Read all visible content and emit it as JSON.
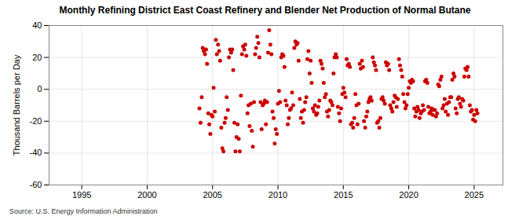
{
  "chart_data": {
    "type": "scatter",
    "title": "Monthly Refining District East Coast Refinery and Blender Net Production of Normal Butane",
    "y_label": "Thousand Barrels per Day",
    "source": "Source: U.S. Energy Information Administration",
    "color": "#cc0000",
    "marker": "circle",
    "grid": true,
    "xlim": [
      1992.5,
      2027.2
    ],
    "xticks": [
      1995,
      2000,
      2005,
      2010,
      2015,
      2020,
      2025
    ],
    "ylim": [
      -60,
      40
    ],
    "yticks": [
      -60,
      -40,
      -20,
      0,
      20,
      40
    ],
    "x": [
      2004.0,
      2004.08,
      2004.17,
      2004.25,
      2004.33,
      2004.42,
      2004.5,
      2004.58,
      2004.67,
      2004.75,
      2004.83,
      2004.92,
      2005.0,
      2005.08,
      2005.17,
      2005.25,
      2005.33,
      2005.42,
      2005.5,
      2005.58,
      2005.67,
      2005.75,
      2005.83,
      2005.92,
      2006.0,
      2006.08,
      2006.17,
      2006.25,
      2006.33,
      2006.42,
      2006.5,
      2006.58,
      2006.67,
      2006.75,
      2006.83,
      2006.92,
      2007.0,
      2007.08,
      2007.17,
      2007.25,
      2007.33,
      2007.42,
      2007.5,
      2007.58,
      2007.67,
      2007.75,
      2007.83,
      2007.92,
      2008.0,
      2008.08,
      2008.17,
      2008.25,
      2008.33,
      2008.42,
      2008.5,
      2008.58,
      2008.67,
      2008.75,
      2008.83,
      2008.92,
      2009.0,
      2009.08,
      2009.17,
      2009.25,
      2009.33,
      2009.42,
      2009.5,
      2009.58,
      2009.67,
      2009.75,
      2009.83,
      2009.92,
      2010.0,
      2010.08,
      2010.17,
      2010.25,
      2010.33,
      2010.42,
      2010.5,
      2010.58,
      2010.67,
      2010.75,
      2010.83,
      2010.92,
      2011.0,
      2011.08,
      2011.17,
      2011.25,
      2011.33,
      2011.42,
      2011.5,
      2011.58,
      2011.67,
      2011.75,
      2011.83,
      2011.92,
      2012.0,
      2012.08,
      2012.17,
      2012.25,
      2012.33,
      2012.42,
      2012.5,
      2012.58,
      2012.67,
      2012.75,
      2012.83,
      2012.92,
      2013.0,
      2013.08,
      2013.17,
      2013.25,
      2013.33,
      2013.42,
      2013.5,
      2013.58,
      2013.67,
      2013.75,
      2013.83,
      2013.92,
      2014.0,
      2014.08,
      2014.17,
      2014.25,
      2014.33,
      2014.42,
      2014.5,
      2014.58,
      2014.67,
      2014.75,
      2014.83,
      2014.92,
      2015.0,
      2015.08,
      2015.17,
      2015.25,
      2015.33,
      2015.42,
      2015.5,
      2015.58,
      2015.67,
      2015.75,
      2015.83,
      2015.92,
      2016.0,
      2016.08,
      2016.17,
      2016.25,
      2016.33,
      2016.42,
      2016.5,
      2016.58,
      2016.67,
      2016.75,
      2016.83,
      2016.92,
      2017.0,
      2017.08,
      2017.17,
      2017.25,
      2017.33,
      2017.42,
      2017.5,
      2017.58,
      2017.67,
      2017.75,
      2017.83,
      2017.92,
      2018.0,
      2018.08,
      2018.17,
      2018.25,
      2018.33,
      2018.42,
      2018.5,
      2018.58,
      2018.67,
      2018.75,
      2018.83,
      2018.92,
      2019.0,
      2019.08,
      2019.17,
      2019.25,
      2019.33,
      2019.42,
      2019.5,
      2019.58,
      2019.67,
      2019.75,
      2019.83,
      2019.92,
      2020.0,
      2020.08,
      2020.17,
      2020.25,
      2020.33,
      2020.42,
      2020.5,
      2020.58,
      2020.67,
      2020.75,
      2020.83,
      2020.92,
      2021.0,
      2021.08,
      2021.17,
      2021.25,
      2021.33,
      2021.42,
      2021.5,
      2021.58,
      2021.67,
      2021.75,
      2021.83,
      2021.92,
      2022.0,
      2022.08,
      2022.17,
      2022.25,
      2022.33,
      2022.42,
      2022.5,
      2022.58,
      2022.67,
      2022.75,
      2022.83,
      2022.92,
      2023.0,
      2023.08,
      2023.17,
      2023.25,
      2023.33,
      2023.42,
      2023.5,
      2023.58,
      2023.67,
      2023.75,
      2023.83,
      2023.92,
      2024.0,
      2024.08,
      2024.17,
      2024.25,
      2024.33,
      2024.42,
      2024.5,
      2024.58,
      2024.67,
      2024.75,
      2024.83,
      2024.92,
      2025.0,
      2025.08,
      2025.17,
      2025.25
    ],
    "values": [
      -12,
      -21,
      -5,
      26,
      24,
      22,
      25,
      16,
      -15,
      -22,
      -28,
      -16,
      -17,
      1,
      -14,
      31,
      22,
      28,
      24,
      18,
      -24,
      -37,
      -39,
      -21,
      -18,
      -5,
      -13,
      20,
      25,
      23,
      25,
      12,
      -21,
      -39,
      -30,
      -22,
      -31,
      -39,
      -4,
      22,
      27,
      25,
      28,
      21,
      -15,
      -10,
      -23,
      -9,
      -26,
      -36,
      -8,
      22,
      26,
      33,
      29,
      20,
      -8,
      -25,
      -10,
      -9,
      -7,
      -22,
      -8,
      23,
      37,
      28,
      22,
      -14,
      -18,
      -34,
      -25,
      -28,
      -9,
      -1,
      -8,
      20,
      22,
      21,
      14,
      -7,
      -10,
      -22,
      -18,
      -13,
      -12,
      -2,
      -10,
      26,
      30,
      28,
      29,
      18,
      -6,
      -18,
      -14,
      -21,
      -13,
      -8,
      -5,
      19,
      24,
      10,
      18,
      4,
      -12,
      -14,
      -10,
      -16,
      -15,
      -11,
      -7,
      18,
      16,
      13,
      4,
      -5,
      -3,
      -14,
      -17,
      -13,
      -7,
      -8,
      -10,
      10,
      20,
      22,
      20,
      -11,
      -15,
      -20,
      -12,
      -3,
      1,
      -2,
      -5,
      19,
      15,
      16,
      14,
      -22,
      -21,
      -24,
      -18,
      -3,
      -10,
      -22,
      -9,
      16,
      13,
      18,
      14,
      -20,
      -24,
      -17,
      -14,
      -8,
      -6,
      -5,
      -7,
      20,
      17,
      15,
      12,
      -21,
      -20,
      -24,
      -18,
      -6,
      -5,
      -7,
      -9,
      17,
      15,
      16,
      12,
      -10,
      -12,
      -14,
      -8,
      -4,
      -5,
      -11,
      -6,
      19,
      15,
      12,
      8,
      -3,
      -8,
      -12,
      -10,
      -3,
      1,
      5,
      4,
      6,
      5,
      -12,
      -17,
      -14,
      -11,
      -13,
      -18,
      -15,
      -14,
      -10,
      -13,
      5,
      6,
      4,
      -11,
      -15,
      -14,
      -12,
      -16,
      -13,
      -13,
      -17,
      -15,
      3,
      2,
      6,
      8,
      -12,
      -10,
      -6,
      -14,
      -9,
      -16,
      -8,
      -5,
      -5,
      6,
      10,
      8,
      -12,
      -15,
      -6,
      -5,
      -9,
      -11,
      -6,
      -7,
      8,
      13,
      12,
      14,
      8,
      -10,
      -14,
      -13,
      -19,
      -16,
      -20,
      -13,
      -15
    ]
  }
}
